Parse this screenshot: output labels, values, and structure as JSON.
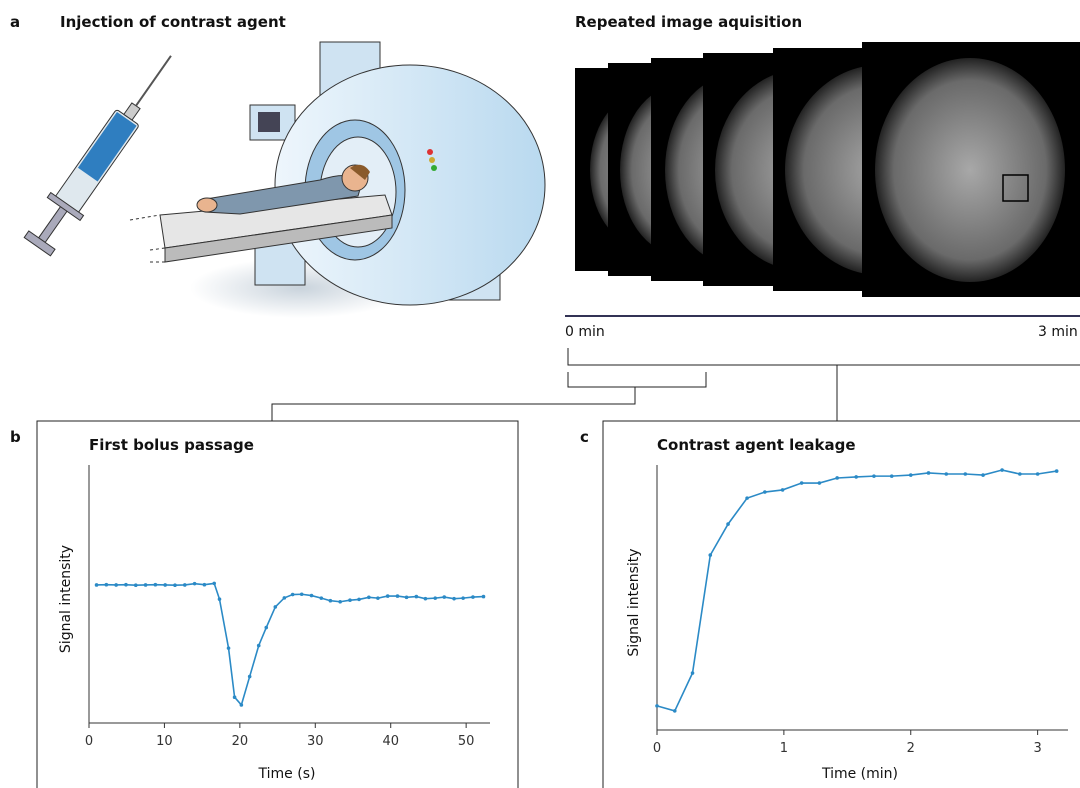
{
  "figure": {
    "panel_a_label": "a",
    "panel_a_title": "Injection of contrast agent",
    "acquisition_title": "Repeated image aquisition",
    "time_start": "0 min",
    "time_end": "3 min",
    "panel_b_label": "b",
    "panel_c_label": "c"
  },
  "chart_data": [
    {
      "type": "line",
      "title": "First bolus passage",
      "x_label": "Time (s)",
      "y_label": "Signal intensity",
      "x": [
        1.0,
        2.3,
        3.6,
        4.9,
        6.2,
        7.5,
        8.8,
        10.1,
        11.4,
        12.7,
        14.0,
        15.3,
        16.6,
        17.3,
        18.5,
        19.3,
        20.2,
        21.3,
        22.5,
        23.5,
        24.7,
        25.9,
        27.0,
        28.2,
        29.5,
        30.8,
        32.0,
        33.3,
        34.6,
        35.8,
        37.1,
        38.3,
        39.6,
        40.9,
        42.1,
        43.4,
        44.6,
        45.9,
        47.1,
        48.4,
        49.6,
        50.9,
        52.3
      ],
      "values": [
        53.5,
        53.6,
        53.5,
        53.6,
        53.4,
        53.5,
        53.6,
        53.5,
        53.4,
        53.5,
        54.0,
        53.6,
        54.1,
        48.0,
        29,
        10,
        7,
        18,
        30,
        37,
        45,
        48.5,
        49.8,
        49.9,
        49.4,
        48.4,
        47.4,
        47.0,
        47.6,
        47.9,
        48.7,
        48.4,
        49.2,
        49.2,
        48.7,
        49.0,
        48.2,
        48.4,
        48.8,
        48.2,
        48.4,
        48.8,
        49.0
      ],
      "color": "#2b8ac6",
      "xlim": [
        0,
        52.5
      ],
      "xticks": [
        0,
        10,
        20,
        30,
        40,
        50
      ],
      "ylim": [
        0,
        100
      ]
    },
    {
      "type": "line",
      "title": "Contrast agent leakage",
      "x_label": "Time (min)",
      "y_label": "Signal intensity",
      "x": [
        0,
        0.14,
        0.28,
        0.42,
        0.56,
        0.71,
        0.85,
        0.99,
        1.14,
        1.28,
        1.42,
        1.57,
        1.71,
        1.85,
        2.0,
        2.14,
        2.28,
        2.43,
        2.57,
        2.72,
        2.86,
        3.0,
        3.15
      ],
      "values": [
        9.1,
        7.2,
        21.5,
        66,
        77.7,
        87.5,
        89.8,
        90.6,
        93.2,
        93.2,
        95.1,
        95.5,
        95.8,
        95.8,
        96.2,
        97.0,
        96.6,
        96.6,
        96.2,
        98.1,
        96.6,
        96.6,
        97.7
      ],
      "color": "#2b8ac6",
      "xlim": [
        0,
        3.2
      ],
      "xticks": [
        0,
        1,
        2,
        3
      ],
      "ylim": [
        0,
        100
      ]
    }
  ]
}
